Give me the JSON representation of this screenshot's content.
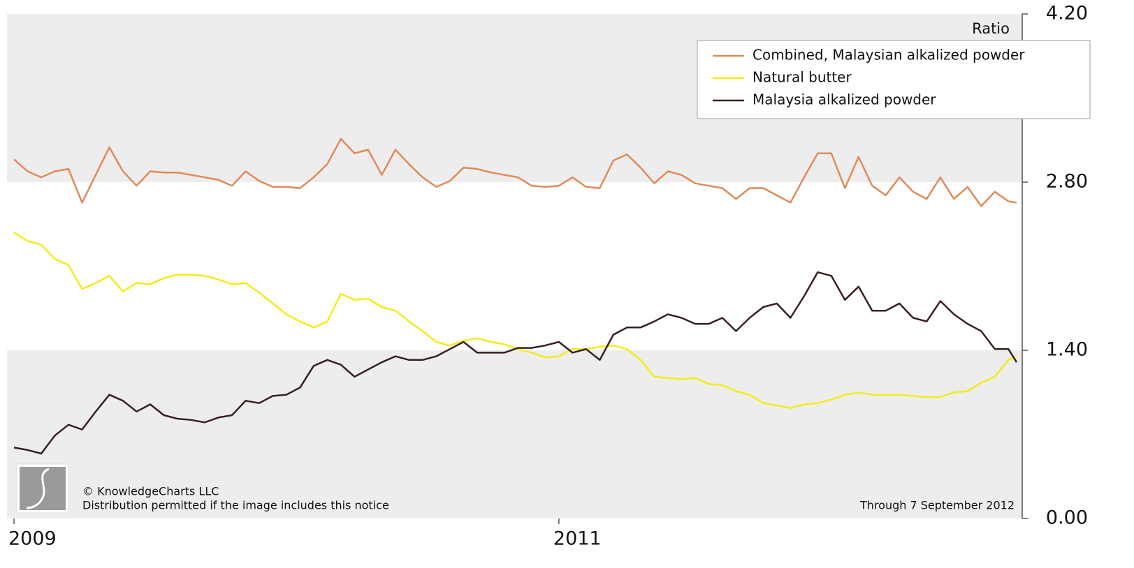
{
  "chart_data": {
    "type": "line",
    "y_label": "Ratio",
    "legend": "top-right",
    "bands": true,
    "x": [
      2009.0,
      2009.05,
      2009.1,
      2009.15,
      2009.2,
      2009.25,
      2009.3,
      2009.35,
      2009.4,
      2009.45,
      2009.5,
      2009.55,
      2009.6,
      2009.65,
      2009.7,
      2009.75,
      2009.8,
      2009.85,
      2009.9,
      2009.95,
      2010.0,
      2010.05,
      2010.1,
      2010.15,
      2010.2,
      2010.25,
      2010.3,
      2010.35,
      2010.4,
      2010.45,
      2010.5,
      2010.55,
      2010.6,
      2010.65,
      2010.7,
      2010.75,
      2010.8,
      2010.85,
      2010.9,
      2010.95,
      2011.0,
      2011.05,
      2011.1,
      2011.15,
      2011.2,
      2011.25,
      2011.3,
      2011.35,
      2011.4,
      2011.45,
      2011.5,
      2011.55,
      2011.6,
      2011.65,
      2011.7,
      2011.75,
      2011.8,
      2011.85,
      2011.9,
      2011.95,
      2012.0,
      2012.05,
      2012.1,
      2012.15,
      2012.2,
      2012.25,
      2012.3,
      2012.35,
      2012.4,
      2012.45,
      2012.5,
      2012.55,
      2012.6,
      2012.65,
      2012.68
    ],
    "series": [
      {
        "name": "Combined, Malaysian alkalized powder",
        "color": "#e08a5a",
        "values": [
          2.99,
          2.89,
          2.84,
          2.89,
          2.91,
          2.63,
          2.86,
          3.09,
          2.89,
          2.77,
          2.89,
          2.88,
          2.88,
          2.86,
          2.84,
          2.82,
          2.77,
          2.89,
          2.81,
          2.76,
          2.76,
          2.75,
          2.84,
          2.95,
          3.16,
          3.04,
          3.07,
          2.86,
          3.07,
          2.95,
          2.84,
          2.76,
          2.81,
          2.92,
          2.91,
          2.88,
          2.86,
          2.84,
          2.77,
          2.76,
          2.77,
          2.84,
          2.76,
          2.75,
          2.98,
          3.03,
          2.92,
          2.79,
          2.89,
          2.86,
          2.79,
          2.77,
          2.75,
          2.66,
          2.75,
          2.75,
          2.69,
          2.63,
          2.84,
          3.04,
          3.04,
          2.75,
          3.01,
          2.77,
          2.69,
          2.84,
          2.72,
          2.66,
          2.84,
          2.66,
          2.76,
          2.6,
          2.72,
          2.64,
          2.63
        ]
      },
      {
        "name": "Natural butter",
        "color": "#f2ec1a",
        "values": [
          2.38,
          2.31,
          2.28,
          2.16,
          2.11,
          1.91,
          1.96,
          2.02,
          1.89,
          1.96,
          1.95,
          2.0,
          2.03,
          2.03,
          2.02,
          1.99,
          1.95,
          1.96,
          1.88,
          1.79,
          1.7,
          1.64,
          1.59,
          1.64,
          1.87,
          1.82,
          1.83,
          1.76,
          1.73,
          1.64,
          1.56,
          1.47,
          1.44,
          1.48,
          1.5,
          1.47,
          1.45,
          1.41,
          1.38,
          1.34,
          1.35,
          1.41,
          1.41,
          1.43,
          1.44,
          1.41,
          1.32,
          1.18,
          1.17,
          1.16,
          1.17,
          1.12,
          1.11,
          1.06,
          1.03,
          0.96,
          0.94,
          0.92,
          0.95,
          0.96,
          0.99,
          1.03,
          1.05,
          1.03,
          1.03,
          1.03,
          1.02,
          1.01,
          1.01,
          1.05,
          1.06,
          1.13,
          1.18,
          1.32,
          1.35
        ]
      },
      {
        "name": "Malaysia alkalized powder",
        "color": "#3a1f1f",
        "values": [
          0.59,
          0.57,
          0.54,
          0.69,
          0.78,
          0.74,
          0.89,
          1.03,
          0.98,
          0.89,
          0.95,
          0.86,
          0.83,
          0.82,
          0.8,
          0.84,
          0.86,
          0.98,
          0.96,
          1.02,
          1.03,
          1.09,
          1.27,
          1.32,
          1.28,
          1.18,
          1.24,
          1.3,
          1.35,
          1.32,
          1.32,
          1.35,
          1.41,
          1.47,
          1.38,
          1.38,
          1.38,
          1.42,
          1.42,
          1.44,
          1.47,
          1.38,
          1.41,
          1.32,
          1.53,
          1.59,
          1.59,
          1.64,
          1.7,
          1.67,
          1.62,
          1.62,
          1.67,
          1.56,
          1.67,
          1.76,
          1.79,
          1.67,
          1.85,
          2.05,
          2.02,
          1.82,
          1.93,
          1.73,
          1.73,
          1.79,
          1.67,
          1.64,
          1.81,
          1.7,
          1.62,
          1.56,
          1.41,
          1.41,
          1.3
        ]
      }
    ],
    "xlim": [
      2009,
      2012.68
    ],
    "xticks": [
      2009,
      2011
    ],
    "ylim": [
      0,
      4.2
    ],
    "yticks": [
      {
        "value": 0,
        "label": "0.00"
      },
      {
        "value": 1.4,
        "label": "1.40"
      },
      {
        "value": 2.8,
        "label": "2.80"
      },
      {
        "value": 4.2,
        "label": "4.20"
      }
    ],
    "copyright": "© KnowledgeCharts LLC",
    "notice": "Distribution permitted if the image includes this notice",
    "through": "Through 7 September 2012"
  }
}
